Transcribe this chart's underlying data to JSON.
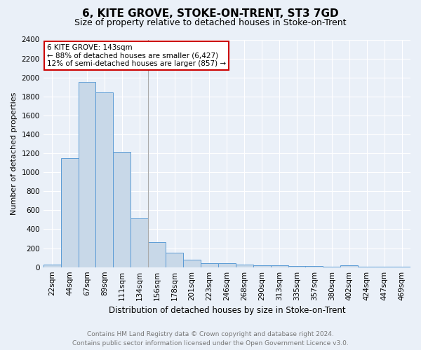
{
  "title": "6, KITE GROVE, STOKE-ON-TRENT, ST3 7GD",
  "subtitle": "Size of property relative to detached houses in Stoke-on-Trent",
  "xlabel": "Distribution of detached houses by size in Stoke-on-Trent",
  "ylabel": "Number of detached properties",
  "bar_color": "#c8d8e8",
  "bar_edge_color": "#5b9bd5",
  "background_color": "#eaf0f8",
  "categories": [
    "22sqm",
    "44sqm",
    "67sqm",
    "89sqm",
    "111sqm",
    "134sqm",
    "156sqm",
    "178sqm",
    "201sqm",
    "223sqm",
    "246sqm",
    "268sqm",
    "290sqm",
    "313sqm",
    "335sqm",
    "357sqm",
    "380sqm",
    "402sqm",
    "424sqm",
    "447sqm",
    "469sqm"
  ],
  "values": [
    28,
    1150,
    1950,
    1840,
    1215,
    515,
    265,
    155,
    80,
    45,
    40,
    30,
    18,
    20,
    12,
    10,
    8,
    20,
    5,
    5,
    3
  ],
  "ylim": [
    0,
    2400
  ],
  "yticks": [
    0,
    200,
    400,
    600,
    800,
    1000,
    1200,
    1400,
    1600,
    1800,
    2000,
    2200,
    2400
  ],
  "annotation_text": "6 KITE GROVE: 143sqm\n← 88% of detached houses are smaller (6,427)\n12% of semi-detached houses are larger (857) →",
  "annotation_bar_index": 5,
  "footer_line1": "Contains HM Land Registry data © Crown copyright and database right 2024.",
  "footer_line2": "Contains public sector information licensed under the Open Government Licence v3.0.",
  "grid_color": "#ffffff",
  "annotation_box_color": "#ffffff",
  "annotation_box_edge": "#cc0000",
  "title_fontsize": 11,
  "subtitle_fontsize": 9,
  "ylabel_fontsize": 8,
  "xlabel_fontsize": 8.5,
  "tick_fontsize": 7.5,
  "footer_fontsize": 6.5
}
